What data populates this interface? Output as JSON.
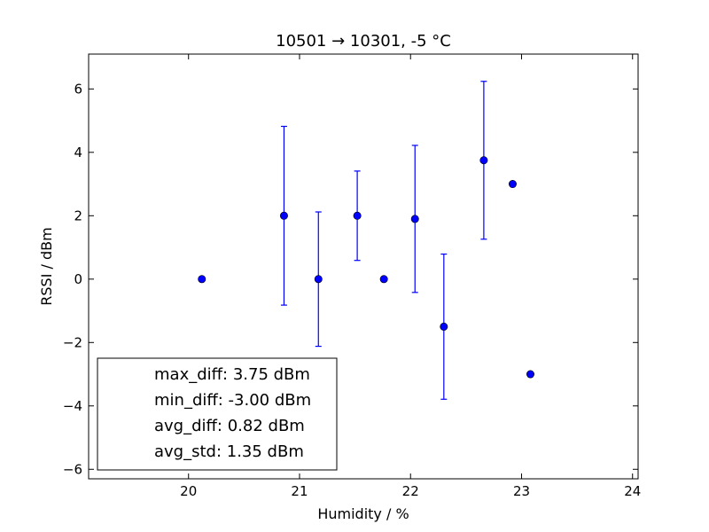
{
  "chart_data": {
    "type": "scatter",
    "title": "10501 → 10301, -5 °C",
    "xlabel": "Humidity / %",
    "ylabel": "RSSI / dBm",
    "xlim": [
      19.1,
      24.05
    ],
    "ylim": [
      -6.3,
      7.1
    ],
    "xticks": [
      20,
      21,
      22,
      23,
      24
    ],
    "yticks": [
      -6,
      -4,
      -2,
      0,
      2,
      4,
      6
    ],
    "xtick_labels": [
      "20",
      "21",
      "22",
      "23",
      "24"
    ],
    "ytick_labels": [
      "−6",
      "−4",
      "−2",
      "0",
      "2",
      "4",
      "6"
    ],
    "grid": false,
    "marker_color": "#0000ff",
    "points": [
      {
        "x": 20.12,
        "y": 0.0,
        "err": 0.0
      },
      {
        "x": 20.86,
        "y": 2.0,
        "err": 2.82
      },
      {
        "x": 21.17,
        "y": 0.0,
        "err": 2.12
      },
      {
        "x": 21.52,
        "y": 2.0,
        "err": 1.41
      },
      {
        "x": 21.76,
        "y": 0.0,
        "err": 0.0
      },
      {
        "x": 22.04,
        "y": 1.9,
        "err": 2.32
      },
      {
        "x": 22.3,
        "y": -1.5,
        "err": 2.29
      },
      {
        "x": 22.66,
        "y": 3.75,
        "err": 2.49
      },
      {
        "x": 22.92,
        "y": 3.0,
        "err": 0.0
      },
      {
        "x": 23.08,
        "y": -3.0,
        "err": 0.0
      }
    ],
    "legend": {
      "placement": "lower-left",
      "entries": [
        "max_diff: 3.75 dBm",
        "min_diff: -3.00 dBm",
        "avg_diff: 0.82 dBm",
        "avg_std: 1.35 dBm"
      ]
    }
  }
}
